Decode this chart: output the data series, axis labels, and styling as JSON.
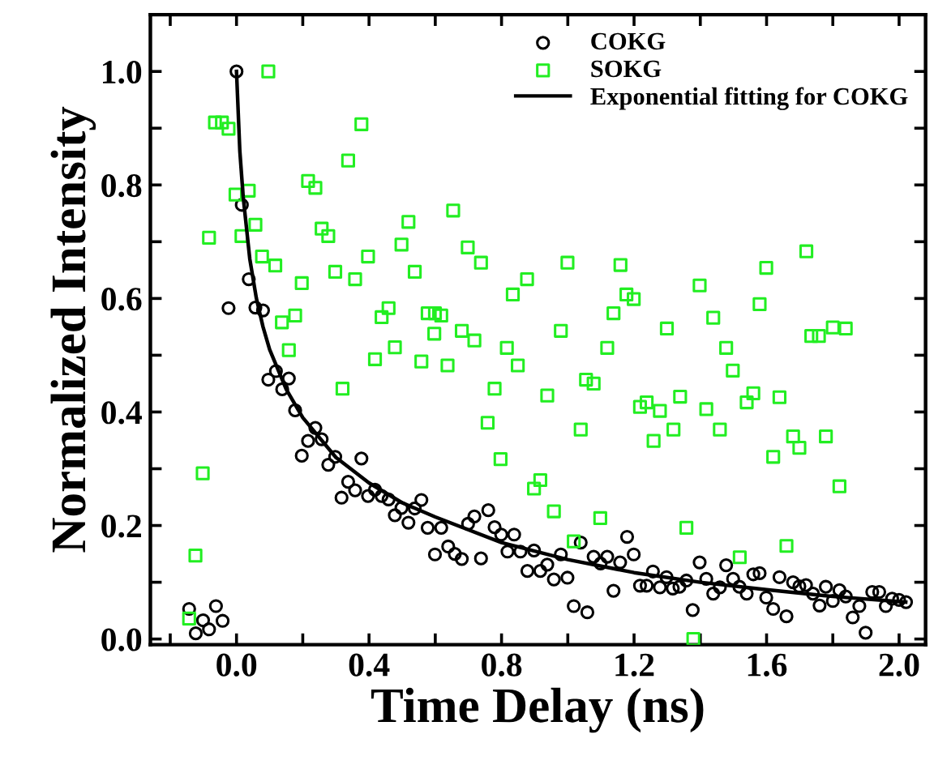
{
  "chart_data": {
    "type": "scatter",
    "xlabel": "Time Delay (ns)",
    "ylabel": "Normalized Intensity",
    "xlim": [
      -0.26,
      2.08
    ],
    "ylim": [
      -0.01,
      1.1
    ],
    "xticks": [
      {
        "value": -0.2,
        "label": null
      },
      {
        "value": 0.0,
        "label": "0.0"
      },
      {
        "value": 0.2,
        "label": null
      },
      0.4,
      {
        "value": 0.6,
        "label": null
      },
      0.8,
      {
        "value": 1.0,
        "label": null
      },
      1.2,
      {
        "value": 1.4,
        "label": null
      },
      1.6,
      {
        "value": 1.8,
        "label": null
      },
      {
        "value": 2.0,
        "label": "2.0"
      }
    ],
    "yticks": [
      {
        "value": 0.0,
        "label": "0.0"
      },
      {
        "value": 0.1,
        "label": null
      },
      0.2,
      {
        "value": 0.3,
        "label": null
      },
      0.4,
      {
        "value": 0.5,
        "label": null
      },
      0.6,
      {
        "value": 0.7,
        "label": null
      },
      0.8,
      {
        "value": 0.9,
        "label": null
      },
      {
        "value": 1.0,
        "label": "1.0"
      }
    ],
    "grid": false,
    "legend": "top right",
    "series": [
      {
        "name": "COKG",
        "marker": "circle",
        "color": "#000000",
        "x": [
          -0.143,
          -0.123,
          -0.101,
          -0.083,
          -0.062,
          -0.042,
          -0.024,
          0.0,
          0.016,
          0.037,
          0.057,
          0.08,
          0.096,
          0.119,
          0.138,
          0.158,
          0.177,
          0.197,
          0.216,
          0.238,
          0.257,
          0.277,
          0.298,
          0.317,
          0.337,
          0.358,
          0.377,
          0.397,
          0.418,
          0.438,
          0.459,
          0.478,
          0.498,
          0.519,
          0.538,
          0.558,
          0.577,
          0.599,
          0.618,
          0.639,
          0.659,
          0.68,
          0.699,
          0.718,
          0.738,
          0.76,
          0.779,
          0.799,
          0.818,
          0.838,
          0.857,
          0.878,
          0.898,
          0.917,
          0.938,
          0.958,
          0.979,
          0.999,
          1.018,
          1.039,
          1.059,
          1.078,
          1.099,
          1.119,
          1.138,
          1.158,
          1.179,
          1.199,
          1.218,
          1.238,
          1.257,
          1.278,
          1.298,
          1.317,
          1.337,
          1.358,
          1.377,
          1.398,
          1.418,
          1.439,
          1.459,
          1.478,
          1.499,
          1.518,
          1.54,
          1.56,
          1.579,
          1.599,
          1.62,
          1.639,
          1.66,
          1.68,
          1.699,
          1.719,
          1.74,
          1.76,
          1.779,
          1.8,
          1.82,
          1.839,
          1.86,
          1.88,
          1.899,
          1.919,
          1.94,
          1.96,
          1.979,
          2.0,
          2.021
        ],
        "values": [
          0.053,
          0.01,
          0.033,
          0.017,
          0.058,
          0.032,
          0.583,
          1.0,
          0.765,
          0.634,
          0.584,
          0.579,
          0.457,
          0.472,
          0.44,
          0.459,
          0.403,
          0.323,
          0.349,
          0.372,
          0.352,
          0.307,
          0.321,
          0.249,
          0.277,
          0.262,
          0.318,
          0.252,
          0.263,
          0.252,
          0.246,
          0.218,
          0.231,
          0.205,
          0.23,
          0.245,
          0.196,
          0.149,
          0.196,
          0.163,
          0.15,
          0.141,
          0.203,
          0.216,
          0.142,
          0.227,
          0.197,
          0.184,
          0.154,
          0.184,
          0.154,
          0.12,
          0.156,
          0.12,
          0.131,
          0.105,
          0.149,
          0.108,
          0.058,
          0.17,
          0.047,
          0.145,
          0.133,
          0.145,
          0.085,
          0.135,
          0.18,
          0.149,
          0.094,
          0.094,
          0.119,
          0.091,
          0.109,
          0.089,
          0.092,
          0.103,
          0.051,
          0.135,
          0.106,
          0.08,
          0.091,
          0.13,
          0.106,
          0.092,
          0.08,
          0.114,
          0.116,
          0.073,
          0.053,
          0.109,
          0.04,
          0.1,
          0.093,
          0.095,
          0.08,
          0.059,
          0.092,
          0.067,
          0.086,
          0.075,
          0.038,
          0.058,
          0.011,
          0.083,
          0.083,
          0.058,
          0.071,
          0.069,
          0.065
        ]
      },
      {
        "name": "SOKG",
        "marker": "square",
        "color": "#22ee22",
        "x": [
          -0.143,
          -0.124,
          -0.102,
          -0.083,
          -0.065,
          -0.044,
          -0.024,
          -0.003,
          0.015,
          0.037,
          0.057,
          0.077,
          0.096,
          0.117,
          0.137,
          0.158,
          0.177,
          0.197,
          0.216,
          0.238,
          0.257,
          0.277,
          0.298,
          0.32,
          0.337,
          0.358,
          0.377,
          0.397,
          0.418,
          0.438,
          0.459,
          0.478,
          0.498,
          0.519,
          0.538,
          0.558,
          0.577,
          0.599,
          0.597,
          0.618,
          0.637,
          0.654,
          0.68,
          0.698,
          0.718,
          0.738,
          0.758,
          0.779,
          0.797,
          0.816,
          0.834,
          0.849,
          0.877,
          0.898,
          0.917,
          0.938,
          0.958,
          0.979,
          0.999,
          1.018,
          1.039,
          1.055,
          1.078,
          1.098,
          1.119,
          1.138,
          1.159,
          1.177,
          1.199,
          1.218,
          1.238,
          1.259,
          1.278,
          1.299,
          1.319,
          1.339,
          1.358,
          1.379,
          1.398,
          1.418,
          1.439,
          1.459,
          1.478,
          1.498,
          1.519,
          1.54,
          1.56,
          1.579,
          1.599,
          1.62,
          1.639,
          1.66,
          1.68,
          1.699,
          1.72,
          1.735,
          1.758,
          1.779,
          1.8,
          1.82,
          1.839
        ],
        "values": [
          0.036,
          0.147,
          0.292,
          0.707,
          0.91,
          0.91,
          0.899,
          0.783,
          0.71,
          0.79,
          0.73,
          0.674,
          1.0,
          0.658,
          0.558,
          0.509,
          0.57,
          0.627,
          0.807,
          0.795,
          0.723,
          0.71,
          0.647,
          0.441,
          0.843,
          0.634,
          0.907,
          0.674,
          0.493,
          0.567,
          0.583,
          0.514,
          0.695,
          0.735,
          0.647,
          0.489,
          0.574,
          0.574,
          0.538,
          0.57,
          0.482,
          0.755,
          0.543,
          0.69,
          0.526,
          0.663,
          0.381,
          0.441,
          0.317,
          0.513,
          0.607,
          0.482,
          0.634,
          0.265,
          0.28,
          0.429,
          0.225,
          0.543,
          0.663,
          0.172,
          0.369,
          0.457,
          0.45,
          0.213,
          0.513,
          0.574,
          0.659,
          0.607,
          0.599,
          0.409,
          0.417,
          0.349,
          0.402,
          0.547,
          0.369,
          0.427,
          0.196,
          0.0,
          0.623,
          0.405,
          0.566,
          0.369,
          0.513,
          0.473,
          0.144,
          0.417,
          0.433,
          0.59,
          0.654,
          0.321,
          0.426,
          0.164,
          0.357,
          0.337,
          0.683,
          0.534,
          0.534,
          0.357,
          0.549,
          0.269,
          0.547
        ]
      },
      {
        "name": "Exponential fitting for COKG",
        "type": "line",
        "marker": "none",
        "line_style": "solid",
        "color": "#000000",
        "x": [
          0.0,
          0.01,
          0.02,
          0.04,
          0.06,
          0.08,
          0.1,
          0.15,
          0.2,
          0.3,
          0.4,
          0.5,
          0.6,
          0.8,
          1.0,
          1.2,
          1.4,
          1.6,
          1.8,
          2.02
        ],
        "values": [
          1.0,
          0.86,
          0.78,
          0.67,
          0.6,
          0.55,
          0.51,
          0.44,
          0.39,
          0.32,
          0.275,
          0.24,
          0.215,
          0.17,
          0.14,
          0.117,
          0.1,
          0.087,
          0.075,
          0.065
        ]
      }
    ]
  }
}
